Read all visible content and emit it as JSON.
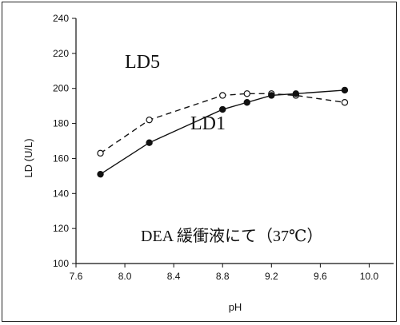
{
  "chart_data": {
    "type": "line",
    "xlabel": "pH",
    "ylabel": "LD (U/L)",
    "xlim": [
      7.6,
      10.2
    ],
    "ylim": [
      100,
      240
    ],
    "x_ticks": [
      "7.6",
      "8.0",
      "8.4",
      "8.8",
      "9.2",
      "9.6",
      "10.0"
    ],
    "y_ticks": [
      "100",
      "120",
      "140",
      "160",
      "180",
      "200",
      "220",
      "240"
    ],
    "grid": false,
    "annotation": "DEA 緩衝液にて（37℃）",
    "series": [
      {
        "name": "LD5",
        "style": "dashed",
        "marker": "open-circle",
        "points": [
          {
            "x": 7.8,
            "y": 163
          },
          {
            "x": 8.2,
            "y": 182
          },
          {
            "x": 8.8,
            "y": 196
          },
          {
            "x": 9.0,
            "y": 197
          },
          {
            "x": 9.2,
            "y": 197
          },
          {
            "x": 9.4,
            "y": 196
          },
          {
            "x": 9.8,
            "y": 192
          }
        ]
      },
      {
        "name": "LD1",
        "style": "solid",
        "marker": "filled-circle",
        "points": [
          {
            "x": 7.8,
            "y": 151
          },
          {
            "x": 8.2,
            "y": 169
          },
          {
            "x": 8.8,
            "y": 188
          },
          {
            "x": 9.0,
            "y": 192
          },
          {
            "x": 9.2,
            "y": 196
          },
          {
            "x": 9.4,
            "y": 197
          },
          {
            "x": 9.8,
            "y": 199
          }
        ]
      }
    ],
    "colors": {
      "line": "#111111",
      "open_marker_fill": "#ffffff"
    }
  }
}
